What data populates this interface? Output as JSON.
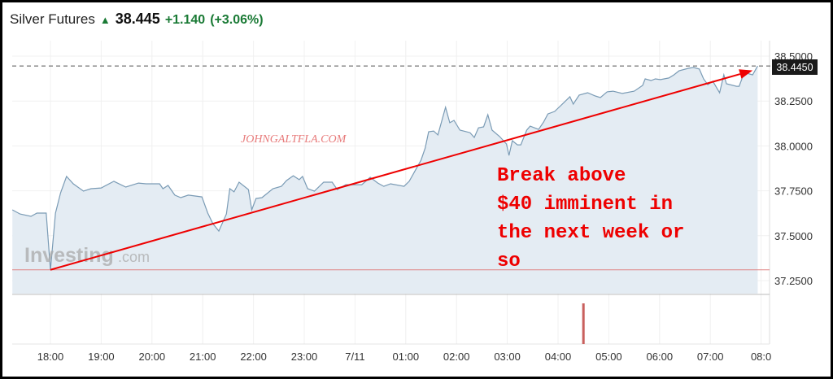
{
  "header": {
    "instrument": "Silver Futures",
    "direction_icon": "arrow-up-icon",
    "last_price": "38.445",
    "change": "+1.140",
    "change_pct": "(+3.06%)",
    "change_color": "#1a7a35"
  },
  "watermarks": {
    "site": "JOHNGALTFLA.COM",
    "brand_main": "Investing",
    "brand_suffix": ".com"
  },
  "annotation": {
    "lines": [
      "Break above",
      "$40 imminent in",
      "the next week or",
      "so"
    ],
    "color": "#ee0000"
  },
  "chart_data": {
    "type": "area",
    "title": "Silver Futures",
    "xlabel": "",
    "ylabel": "",
    "ylim": [
      37.15,
      38.55
    ],
    "y_ticks": [
      "38.5000",
      "38.2500",
      "38.0000",
      "37.7500",
      "37.5000",
      "37.2500"
    ],
    "x_ticks": [
      "18:00",
      "19:00",
      "20:00",
      "21:00",
      "22:00",
      "23:00",
      "7/11",
      "01:00",
      "02:00",
      "03:00",
      "04:00",
      "05:00",
      "06:00",
      "07:00",
      "08:0"
    ],
    "grid": true,
    "last_value_label": "38.4450",
    "last_value": 38.445,
    "reference_line_low": 37.31,
    "line_color": "#7a9bb5",
    "fill_color": "#e4ecf3",
    "points": [
      [
        "17:15",
        37.644
      ],
      [
        "17:24",
        37.621
      ],
      [
        "17:37",
        37.608
      ],
      [
        "17:44",
        37.626
      ],
      [
        "17:55",
        37.626
      ],
      [
        "18:00",
        37.309
      ],
      [
        "18:06",
        37.626
      ],
      [
        "18:12",
        37.739
      ],
      [
        "18:19",
        37.83
      ],
      [
        "18:27",
        37.789
      ],
      [
        "18:39",
        37.748
      ],
      [
        "18:48",
        37.762
      ],
      [
        "19:00",
        37.766
      ],
      [
        "19:15",
        37.803
      ],
      [
        "19:29",
        37.771
      ],
      [
        "19:44",
        37.793
      ],
      [
        "19:53",
        37.789
      ],
      [
        "20:09",
        37.789
      ],
      [
        "20:13",
        37.762
      ],
      [
        "20:19",
        37.78
      ],
      [
        "20:27",
        37.726
      ],
      [
        "20:34",
        37.712
      ],
      [
        "20:43",
        37.726
      ],
      [
        "20:59",
        37.716
      ],
      [
        "21:06",
        37.626
      ],
      [
        "21:12",
        37.567
      ],
      [
        "21:19",
        37.526
      ],
      [
        "21:28",
        37.621
      ],
      [
        "21:32",
        37.762
      ],
      [
        "21:37",
        37.744
      ],
      [
        "21:43",
        37.798
      ],
      [
        "21:54",
        37.757
      ],
      [
        "21:58",
        37.644
      ],
      [
        "22:03",
        37.707
      ],
      [
        "22:10",
        37.712
      ],
      [
        "22:23",
        37.762
      ],
      [
        "22:33",
        37.775
      ],
      [
        "22:39",
        37.807
      ],
      [
        "22:47",
        37.834
      ],
      [
        "22:54",
        37.812
      ],
      [
        "22:58",
        37.83
      ],
      [
        "23:04",
        37.762
      ],
      [
        "23:12",
        37.748
      ],
      [
        "23:23",
        37.798
      ],
      [
        "23:33",
        37.798
      ],
      [
        "23:39",
        37.757
      ],
      [
        "23:49",
        37.784
      ],
      [
        "00:08",
        37.784
      ],
      [
        "00:18",
        37.825
      ],
      [
        "00:27",
        37.793
      ],
      [
        "00:34",
        37.775
      ],
      [
        "00:42",
        37.789
      ],
      [
        "00:58",
        37.775
      ],
      [
        "01:04",
        37.803
      ],
      [
        "01:11",
        37.861
      ],
      [
        "01:18",
        37.92
      ],
      [
        "01:23",
        37.988
      ],
      [
        "01:27",
        38.079
      ],
      [
        "01:33",
        38.083
      ],
      [
        "01:38",
        38.061
      ],
      [
        "01:47",
        38.215
      ],
      [
        "01:52",
        38.129
      ],
      [
        "01:57",
        38.142
      ],
      [
        "02:04",
        38.088
      ],
      [
        "02:16",
        38.074
      ],
      [
        "02:21",
        38.047
      ],
      [
        "02:26",
        38.101
      ],
      [
        "02:32",
        38.106
      ],
      [
        "02:37",
        38.174
      ],
      [
        "02:42",
        38.088
      ],
      [
        "02:51",
        38.052
      ],
      [
        "02:59",
        38.011
      ],
      [
        "03:02",
        37.947
      ],
      [
        "03:06",
        38.029
      ],
      [
        "03:12",
        38.006
      ],
      [
        "03:16",
        38.006
      ],
      [
        "03:23",
        38.088
      ],
      [
        "03:27",
        38.11
      ],
      [
        "03:37",
        38.092
      ],
      [
        "03:43",
        38.133
      ],
      [
        "03:48",
        38.178
      ],
      [
        "03:56",
        38.192
      ],
      [
        "04:06",
        38.237
      ],
      [
        "04:14",
        38.274
      ],
      [
        "04:18",
        38.233
      ],
      [
        "04:25",
        38.283
      ],
      [
        "04:35",
        38.296
      ],
      [
        "04:44",
        38.278
      ],
      [
        "04:50",
        38.269
      ],
      [
        "04:58",
        38.301
      ],
      [
        "05:05",
        38.305
      ],
      [
        "05:16",
        38.292
      ],
      [
        "05:30",
        38.305
      ],
      [
        "05:40",
        38.337
      ],
      [
        "05:43",
        38.373
      ],
      [
        "05:50",
        38.364
      ],
      [
        "05:55",
        38.373
      ],
      [
        "06:01",
        38.369
      ],
      [
        "06:11",
        38.378
      ],
      [
        "06:17",
        38.396
      ],
      [
        "06:23",
        38.418
      ],
      [
        "06:34",
        38.432
      ],
      [
        "06:40",
        38.437
      ],
      [
        "06:47",
        38.428
      ],
      [
        "06:52",
        38.373
      ],
      [
        "06:57",
        38.341
      ],
      [
        "07:03",
        38.36
      ],
      [
        "07:11",
        38.296
      ],
      [
        "07:16",
        38.396
      ],
      [
        "07:19",
        38.346
      ],
      [
        "07:31",
        38.332
      ],
      [
        "07:34",
        38.332
      ],
      [
        "07:38",
        38.382
      ],
      [
        "07:43",
        38.405
      ],
      [
        "07:50",
        38.396
      ],
      [
        "07:56",
        38.445
      ]
    ],
    "volume_bars": [
      [
        "04:30",
        1.0
      ]
    ],
    "volume_color": "#c9605e",
    "trend_arrow": {
      "from": [
        "18:00",
        37.31
      ],
      "to": [
        "07:50",
        38.42
      ],
      "color": "#ee0000"
    }
  }
}
